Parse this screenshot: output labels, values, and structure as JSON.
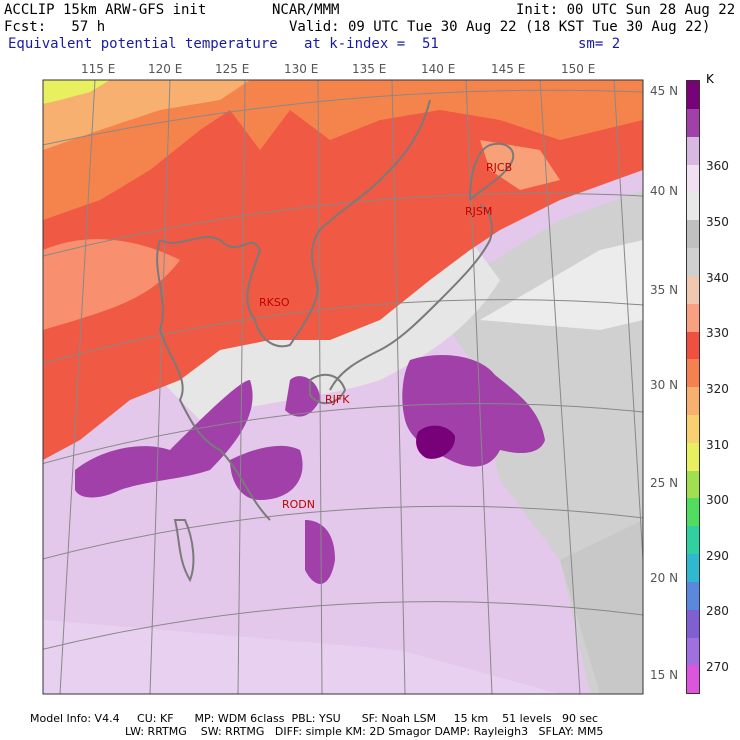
{
  "header": {
    "line1_left": "ACCLIP 15km ARW-GFS init",
    "line1_mid": "NCAR/MMM",
    "line1_right": "Init: 00 UTC Sun 28 Aug 22",
    "line2_left": "Fcst:   57 h",
    "line2_right": "Valid: 09 UTC Tue 30 Aug 22 (18 KST Tue 30 Aug 22)",
    "line3_left": "Equivalent potential temperature",
    "line3_mid": "at k-index =  51",
    "line3_right": "sm= 2"
  },
  "map": {
    "lon_labels": [
      "115 E",
      "120 E",
      "125 E",
      "130 E",
      "135 E",
      "140 E",
      "145 E",
      "150 E"
    ],
    "lat_labels": [
      "45 N",
      "40 N",
      "35 N",
      "30 N",
      "25 N",
      "20 N",
      "15 N"
    ],
    "stations": [
      "RJCB",
      "RJSM",
      "RKSO",
      "RJFK",
      "RODN"
    ]
  },
  "colorbar": {
    "unit": "K",
    "labels": [
      "360",
      "350",
      "340",
      "330",
      "320",
      "310",
      "300",
      "290",
      "280",
      "270"
    ],
    "colors": [
      "#dd55dd",
      "#a070e0",
      "#8060d0",
      "#5a88dd",
      "#30b8d0",
      "#30d0a0",
      "#50dd60",
      "#a0e050",
      "#e8f060",
      "#f8d070",
      "#f8b070",
      "#f58050",
      "#f05040",
      "#f8a080",
      "#f0c8b0",
      "#d0d0d0",
      "#c0c0c0",
      "#e8e8e8",
      "#f0e0f0",
      "#d8b8e0",
      "#a040a8",
      "#780078"
    ]
  },
  "footer": {
    "line1": "Model Info: V4.4     CU: KF      MP: WDM 6class  PBL: YSU      SF: Noah LSM     15 km    51 levels   90 sec",
    "line2": "LW: RRTMG    SW: RRTMG   DIFF: simple KM: 2D Smagor DAMP: Rayleigh3   SFLAY: MM5"
  }
}
